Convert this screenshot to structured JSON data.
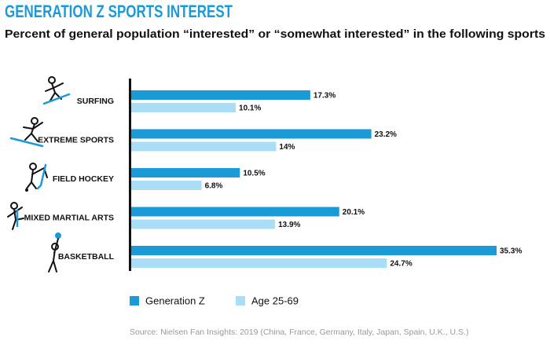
{
  "chart_data": {
    "type": "bar",
    "orientation": "horizontal",
    "title": "GENERATION Z SPORTS INTEREST",
    "subtitle": "Percent of general population “interested” or “somewhat interested” in the following sports",
    "categories": [
      "SURFING",
      "EXTREME SPORTS",
      "FIELD HOCKEY",
      "MIXED MARTIAL ARTS",
      "BASKETBALL"
    ],
    "series": [
      {
        "name": "Generation Z",
        "color": "#1b9ad8",
        "values": [
          17.3,
          23.2,
          10.5,
          20.1,
          35.3
        ],
        "value_labels": [
          "17.3%",
          "23.2%",
          "10.5%",
          "20.1%",
          "35.3%"
        ]
      },
      {
        "name": "Age 25-69",
        "color": "#a9def6",
        "values": [
          10.1,
          14,
          6.8,
          13.9,
          24.7
        ],
        "value_labels": [
          "10.1%",
          "14%",
          "6.8%",
          "13.9%",
          "24.7%"
        ]
      }
    ],
    "source": "Source: Nielsen Fan Insights: 2019 (China, France, Germany, Italy, Japan, Spain, U.K., U.S.)"
  }
}
